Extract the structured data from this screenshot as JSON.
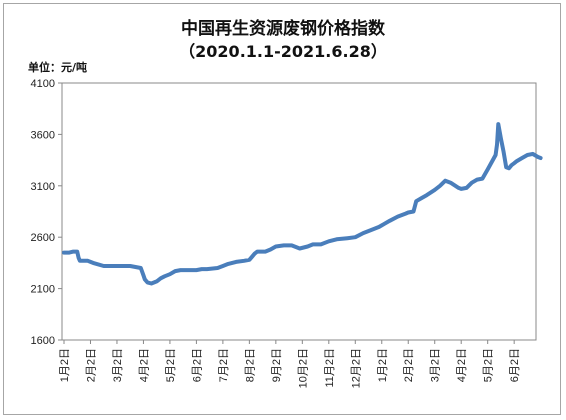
{
  "chart_data": {
    "type": "line",
    "title": "中国再生资源废钢价格指数",
    "subtitle": "（2020.1.1-2021.6.28）",
    "ylabel": "单位：元/吨",
    "xlabel": "",
    "ylim": [
      1600,
      4100
    ],
    "yticks": [
      1600,
      2100,
      2600,
      3100,
      3600,
      4100
    ],
    "grid": false,
    "legend": "none",
    "line_color": "#4a7ebb",
    "xticks": [
      {
        "label": "1月2日",
        "pos": 0
      },
      {
        "label": "2月2日",
        "pos": 1
      },
      {
        "label": "3月2日",
        "pos": 2
      },
      {
        "label": "4月2日",
        "pos": 3
      },
      {
        "label": "5月2日",
        "pos": 4
      },
      {
        "label": "6月2日",
        "pos": 5
      },
      {
        "label": "7月2日",
        "pos": 6
      },
      {
        "label": "8月2日",
        "pos": 7
      },
      {
        "label": "9月2日",
        "pos": 8
      },
      {
        "label": "10月2日",
        "pos": 9
      },
      {
        "label": "11月2日",
        "pos": 10
      },
      {
        "label": "12月2日",
        "pos": 11
      },
      {
        "label": "1月2日",
        "pos": 12
      },
      {
        "label": "2月2日",
        "pos": 13
      },
      {
        "label": "3月2日",
        "pos": 14
      },
      {
        "label": "4月2日",
        "pos": 15
      },
      {
        "label": "5月2日",
        "pos": 16
      },
      {
        "label": "6月2日",
        "pos": 17
      }
    ],
    "series": [
      {
        "name": "",
        "x": [
          0,
          0.2,
          0.35,
          0.5,
          0.55,
          0.6,
          0.75,
          0.9,
          1.0,
          1.1,
          1.5,
          2.0,
          2.3,
          2.5,
          2.7,
          2.9,
          3.0,
          3.05,
          3.15,
          3.3,
          3.5,
          3.65,
          3.8,
          4.0,
          4.2,
          4.4,
          4.7,
          5.0,
          5.2,
          5.4,
          5.8,
          6.0,
          6.2,
          6.5,
          6.8,
          7.0,
          7.2,
          7.3,
          7.4,
          7.6,
          7.8,
          8.0,
          8.3,
          8.6,
          8.9,
          9.2,
          9.4,
          9.7,
          10.0,
          10.3,
          10.7,
          11.0,
          11.3,
          11.6,
          11.9,
          12.1,
          12.3,
          12.6,
          12.9,
          13.0,
          13.2,
          13.3,
          13.5,
          13.7,
          14.0,
          14.2,
          14.4,
          14.6,
          14.9,
          15.0,
          15.2,
          15.4,
          15.6,
          15.8,
          16.0,
          16.3,
          16.35,
          16.4,
          16.5,
          16.6,
          16.7,
          16.8,
          16.9,
          17.0,
          17.1,
          17.3,
          17.5,
          17.7,
          17.9,
          18.0
        ],
        "values": [
          2450,
          2450,
          2460,
          2460,
          2400,
          2370,
          2370,
          2370,
          2360,
          2350,
          2320,
          2320,
          2320,
          2320,
          2310,
          2300,
          2230,
          2190,
          2160,
          2150,
          2170,
          2200,
          2220,
          2240,
          2270,
          2280,
          2280,
          2280,
          2290,
          2290,
          2300,
          2320,
          2340,
          2360,
          2370,
          2380,
          2440,
          2460,
          2460,
          2460,
          2480,
          2510,
          2520,
          2520,
          2490,
          2510,
          2530,
          2530,
          2560,
          2580,
          2590,
          2600,
          2640,
          2670,
          2700,
          2730,
          2760,
          2800,
          2830,
          2840,
          2850,
          2950,
          2980,
          3010,
          3060,
          3100,
          3150,
          3130,
          3080,
          3070,
          3080,
          3130,
          3160,
          3170,
          3260,
          3400,
          3500,
          3700,
          3560,
          3430,
          3280,
          3270,
          3300,
          3320,
          3340,
          3370,
          3400,
          3410,
          3380,
          3370
        ]
      }
    ]
  }
}
